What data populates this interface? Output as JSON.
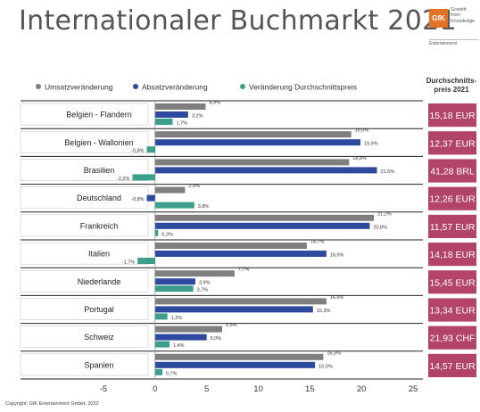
{
  "header": {
    "title": "Internationaler Buchmarkt 2021",
    "logo_mark": "GfK",
    "logo_tagline": [
      "Growth",
      "from",
      "Knowledge"
    ],
    "logo_subtitle": "Entertainment"
  },
  "prices": {
    "heading": [
      "Durchschnitts-",
      "preis 2021"
    ],
    "values": [
      "15,18 EUR",
      "12,37 EUR",
      "41,28 BRL",
      "12,26 EUR",
      "11,57 EUR",
      "14,18 EUR",
      "15,45 EUR",
      "13,34 EUR",
      "21,93 CHF",
      "14,57 EUR"
    ],
    "color": "#b24467"
  },
  "footer": {
    "copyright": "Copyright: GfK Entertainment GmbH, 2022"
  },
  "chart_data": {
    "type": "bar",
    "orientation": "horizontal",
    "categories": [
      "Belgien - Flandern",
      "Belgien - Wallonien",
      "Brasilien",
      "Deutschland",
      "Frankreich",
      "Italien",
      "Niederlande",
      "Portugal",
      "Schweiz",
      "Spanien"
    ],
    "series": [
      {
        "name": "Umsatzveränderung",
        "color": "#7f7f7f",
        "values": [
          4.9,
          19.0,
          18.8,
          2.9,
          21.2,
          14.7,
          7.7,
          16.6,
          6.5,
          16.3
        ],
        "labels": [
          "4,9%",
          "19,0%",
          "18,8%",
          "2,9%",
          "21,2%",
          "14,7%",
          "7,7%",
          "16,6%",
          "6,5%",
          "16,3%"
        ]
      },
      {
        "name": "Absatzveränderung",
        "color": "#2e4a9e",
        "values": [
          3.2,
          19.9,
          21.5,
          -0.8,
          20.8,
          16.6,
          3.9,
          15.3,
          5.0,
          15.5
        ],
        "labels": [
          "3,2%",
          "19,9%",
          "21,5%",
          "-0,8%",
          "20,8%",
          "16,6%",
          "3,9%",
          "15,3%",
          "5,0%",
          "15,5%"
        ]
      },
      {
        "name": "Veränderung Durchschnittspreis",
        "color": "#3d9e8c",
        "values": [
          1.7,
          -0.8,
          -2.2,
          3.8,
          0.3,
          -1.7,
          3.7,
          1.2,
          1.4,
          0.7
        ],
        "labels": [
          "1,7%",
          "-0,8%",
          "-2,2%",
          "3,8%",
          "0,3%",
          "-1,7%",
          "3,7%",
          "1,2%",
          "1,4%",
          "0,7%"
        ]
      }
    ],
    "xlim": [
      -5,
      25
    ],
    "xticks": [
      "-5",
      "0",
      "5",
      "10",
      "15",
      "20",
      "25"
    ],
    "xtick_values": [
      -5,
      0,
      5,
      10,
      15,
      20,
      25
    ],
    "legend_position": "top",
    "grid": false
  }
}
